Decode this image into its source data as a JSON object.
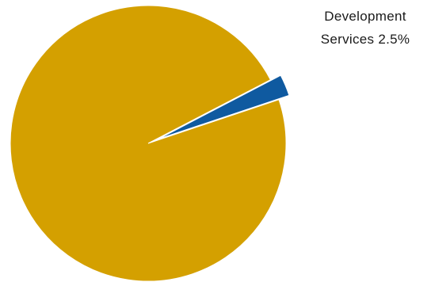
{
  "chart_data": {
    "type": "pie",
    "slices": [
      {
        "label": "Development Services",
        "label_line1": "Development",
        "label_line2": "Services 2.5%",
        "value": 2.5,
        "color": "#0f5aa0",
        "exploded": true
      },
      {
        "label": "",
        "value": 97.5,
        "color": "#d4a000",
        "exploded": false
      }
    ],
    "title": "",
    "legend": "none"
  }
}
